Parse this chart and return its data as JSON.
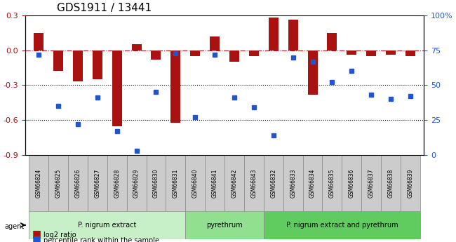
{
  "title": "GDS1911 / 13441",
  "samples": [
    "GSM66824",
    "GSM66825",
    "GSM66826",
    "GSM66827",
    "GSM66828",
    "GSM66829",
    "GSM66830",
    "GSM66831",
    "GSM66840",
    "GSM66841",
    "GSM66842",
    "GSM66843",
    "GSM66832",
    "GSM66833",
    "GSM66834",
    "GSM66835",
    "GSM66836",
    "GSM66837",
    "GSM66838",
    "GSM66839"
  ],
  "log2_ratio": [
    0.15,
    -0.18,
    -0.27,
    -0.25,
    -0.65,
    0.05,
    -0.08,
    -0.62,
    -0.05,
    0.12,
    -0.1,
    -0.05,
    0.28,
    0.26,
    -0.38,
    0.15,
    -0.04,
    -0.05,
    -0.04,
    -0.05
  ],
  "percentile": [
    72,
    35,
    22,
    41,
    17,
    3,
    45,
    73,
    27,
    72,
    41,
    34,
    14,
    70,
    67,
    52,
    60,
    43,
    40,
    42
  ],
  "groups": [
    {
      "label": "P. nigrum extract",
      "start": 0,
      "end": 8,
      "color": "#c8f0c8"
    },
    {
      "label": "pyrethrum",
      "start": 8,
      "end": 12,
      "color": "#90e090"
    },
    {
      "label": "P. nigrum extract and pyrethrum",
      "start": 12,
      "end": 20,
      "color": "#60cc60"
    }
  ],
  "bar_color": "#aa1111",
  "dot_color": "#2255cc",
  "ylim_left": [
    -0.9,
    0.3
  ],
  "ylim_right": [
    0,
    100
  ],
  "yticks_left": [
    -0.9,
    -0.6,
    -0.3,
    0.0,
    0.3
  ],
  "yticks_right": [
    0,
    25,
    50,
    75,
    100
  ],
  "hline_y": 0.0,
  "dotted_lines": [
    -0.3,
    -0.6
  ],
  "background_color": "#ffffff"
}
